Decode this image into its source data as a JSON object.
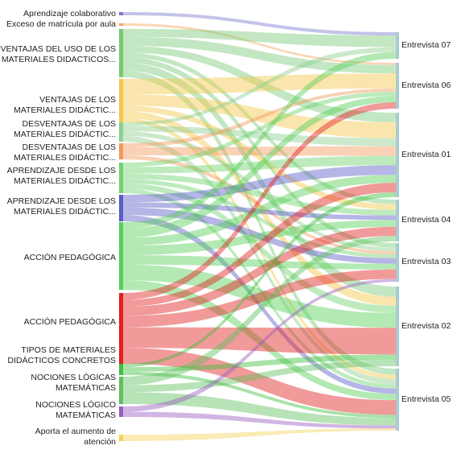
{
  "diagram": {
    "type": "sankey",
    "sources": [
      {
        "id": "s0",
        "line1": "Aprendizaje colaborativo",
        "line2": "",
        "color": "#7b7bd0"
      },
      {
        "id": "s1",
        "line1": "Exceso de matrícula por aula",
        "line2": "",
        "color": "#f3a35c"
      },
      {
        "id": "s2",
        "line1": "VENTAJAS DEL USO DE LOS",
        "line2": "MATERIALES DIDACTICOS...",
        "color": "#77c977"
      },
      {
        "id": "s3",
        "line1": "VENTAJAS DE LOS",
        "line2": "MATERIALES DIDÁCTIC...",
        "color": "#f4c84a"
      },
      {
        "id": "s4",
        "line1": "DESVENTAJAS DE LOS",
        "line2": "MATERIALES DIDÁCTIC...",
        "color": "#8fcf8f"
      },
      {
        "id": "s5",
        "line1": "DESVENTAJAS DE LOS",
        "line2": "MATERIALES DIDÁCTIC...",
        "color": "#f2995c"
      },
      {
        "id": "s6",
        "line1": "APRENDIZAJE DESDE LOS",
        "line2": "MATERIALES DIDÁCTIC...",
        "color": "#6fd36f"
      },
      {
        "id": "s7",
        "line1": "APRENDIZAJE DESDE LOS",
        "line2": "MATERIALES DIDÁCTIC...",
        "color": "#5c5cc8"
      },
      {
        "id": "s8",
        "line1": "ACCIÓN PEDAGÓGICA",
        "line2": "",
        "color": "#57cf57"
      },
      {
        "id": "s9",
        "line1": "ACCIÓN PEDAGÓGICA",
        "line2": "",
        "color": "#e02020"
      },
      {
        "id": "s10",
        "line1": "TIPOS DE MATERIALES",
        "line2": "DIDÁCTICOS CONCRETOS",
        "color": "#3fbf3f"
      },
      {
        "id": "s11",
        "line1": "NOCIONES LÓGICAS",
        "line2": "MATEMÁTICAS",
        "color": "#60c060"
      },
      {
        "id": "s12",
        "line1": "NOCIONES LÓGICO",
        "line2": "MATEMÁTICAS",
        "color": "#9a5cc0"
      },
      {
        "id": "s13",
        "line1": "Aporta el aumento de",
        "line2": "atención",
        "color": "#f3d25c"
      }
    ],
    "targets": [
      {
        "id": "t0",
        "label": "Entrevista 07",
        "color": "#a9cbd2"
      },
      {
        "id": "t1",
        "label": "Entrevista 06",
        "color": "#a9cbd2"
      },
      {
        "id": "t2",
        "label": "Entrevista 01",
        "color": "#a9cbd2"
      },
      {
        "id": "t3",
        "label": "Entrevista 04",
        "color": "#a9cbd2"
      },
      {
        "id": "t4",
        "label": "Entrevista 03",
        "color": "#a9cbd2"
      },
      {
        "id": "t5",
        "label": "Entrevista 02",
        "color": "#a9cbd2"
      },
      {
        "id": "t6",
        "label": "Entrevista 05",
        "color": "#a9cbd2"
      }
    ]
  }
}
